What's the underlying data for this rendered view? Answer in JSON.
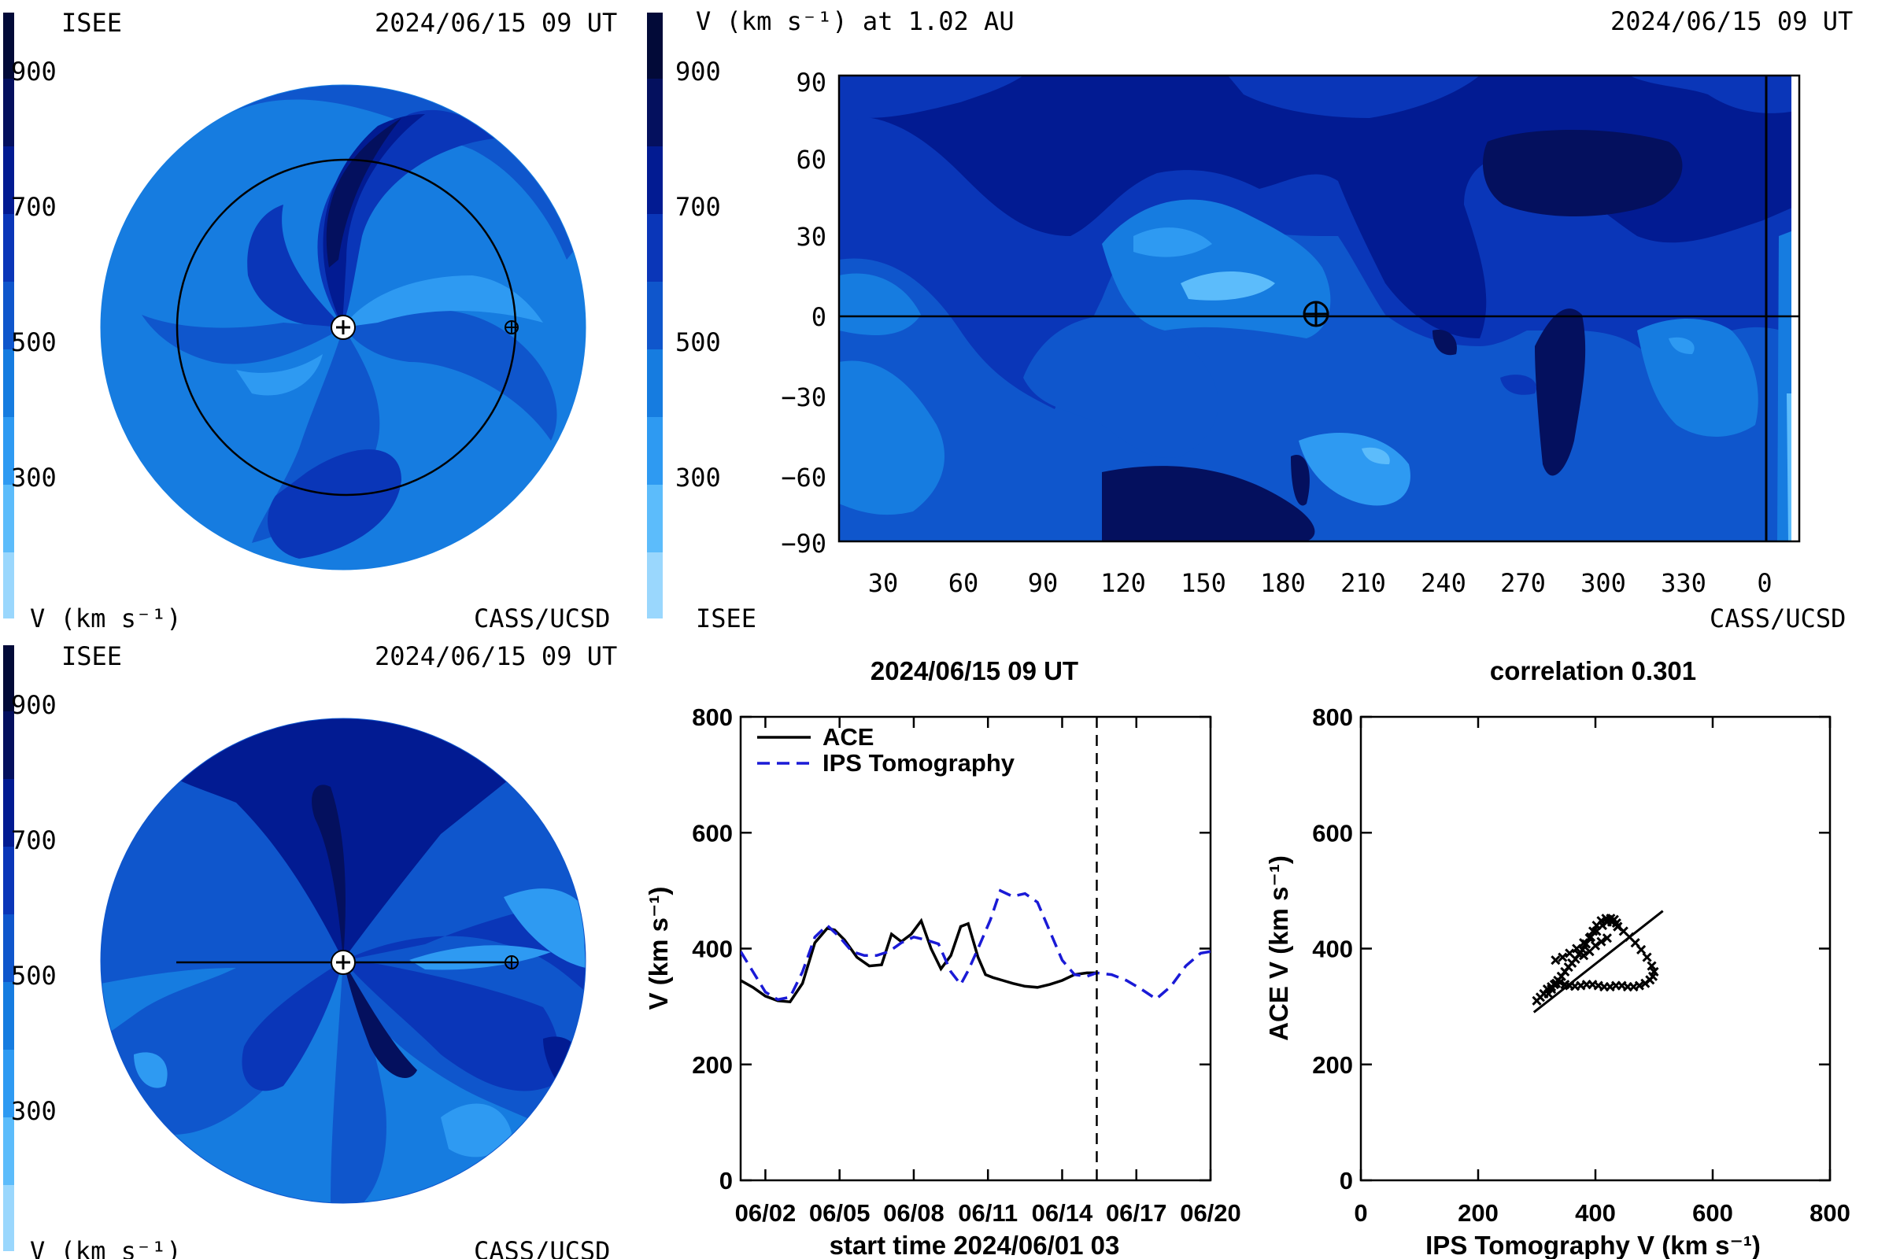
{
  "colors": {
    "v_900": "#020a38",
    "v_800": "#04105e",
    "v_700": "#021b92",
    "v_600": "#0a36b8",
    "v_500": "#0f56cc",
    "v_400": "#167ce0",
    "v_300": "#2e9af2",
    "v_200": "#5cbcfb",
    "v_100": "#9ad7fd",
    "ace_line": "#000000",
    "ips_line": "#1a1ad6"
  },
  "panel_top_left": {
    "org": "ISEE",
    "timestamp": "2024/06/15 09 UT",
    "colorbar_ticks": [
      "900",
      "700",
      "500",
      "300"
    ],
    "units": "V (km s⁻¹)",
    "credit": "CASS/UCSD"
  },
  "panel_bottom_left": {
    "org": "ISEE",
    "timestamp": "2024/06/15 09 UT",
    "colorbar_ticks": [
      "900",
      "700",
      "500",
      "300"
    ],
    "units": "V (km s⁻¹)",
    "credit": "CASS/UCSD"
  },
  "panel_top_right": {
    "title": "V (km s⁻¹) at 1.02 AU",
    "timestamp": "2024/06/15 09 UT",
    "colorbar_ticks": [
      "900",
      "700",
      "500",
      "300"
    ],
    "org": "ISEE",
    "credit": "CASS/UCSD",
    "y_ticks": [
      "90",
      "60",
      "30",
      "0",
      "−30",
      "−60",
      "−90"
    ],
    "x_ticks": [
      "30",
      "60",
      "90",
      "120",
      "150",
      "180",
      "210",
      "240",
      "270",
      "300",
      "330",
      "0"
    ]
  },
  "chart_data": [
    {
      "type": "line",
      "title": "2024/06/15 09 UT",
      "xlabel": "start time 2024/06/01 03",
      "ylabel": "V (km s⁻¹)",
      "xlim": [
        0,
        19
      ],
      "ylim": [
        0,
        800
      ],
      "x_ticks": [
        "06/02",
        "06/05",
        "06/08",
        "06/11",
        "06/14",
        "06/17",
        "06/20"
      ],
      "y_ticks": [
        "0",
        "200",
        "400",
        "600",
        "800"
      ],
      "marker_x": 14.4,
      "series": [
        {
          "name": "ACE",
          "style": "solid",
          "x": [
            0,
            0.5,
            1.0,
            1.5,
            2.0,
            2.5,
            3.0,
            3.5,
            3.8,
            4.2,
            4.7,
            5.2,
            5.7,
            6.1,
            6.5,
            6.9,
            7.3,
            7.7,
            8.1,
            8.5,
            8.9,
            9.2,
            9.6,
            9.9,
            10.2,
            10.6,
            11.0,
            11.5,
            12.0,
            12.5,
            13.0,
            13.5,
            14.0,
            14.4
          ],
          "y": [
            345,
            333,
            318,
            310,
            308,
            340,
            410,
            435,
            432,
            415,
            385,
            370,
            372,
            425,
            412,
            425,
            448,
            400,
            365,
            388,
            438,
            443,
            385,
            355,
            350,
            345,
            340,
            335,
            333,
            338,
            345,
            355,
            358,
            358
          ]
        },
        {
          "name": "IPS Tomography",
          "style": "dashed",
          "x": [
            0,
            0.5,
            1.0,
            1.5,
            2.0,
            2.5,
            3.0,
            3.5,
            4.0,
            4.5,
            5.0,
            5.5,
            6.0,
            6.5,
            7.0,
            7.5,
            8.0,
            8.5,
            8.9,
            9.2,
            9.6,
            10.1,
            10.5,
            11.0,
            11.5,
            12.0,
            12.5,
            13.0,
            13.5,
            14.0,
            14.4,
            15.0,
            15.6,
            16.2,
            16.8,
            17.4,
            18.0,
            18.6,
            19.0
          ],
          "y": [
            395,
            360,
            325,
            312,
            316,
            360,
            420,
            440,
            420,
            395,
            388,
            388,
            395,
            410,
            420,
            415,
            408,
            360,
            338,
            362,
            400,
            450,
            500,
            490,
            495,
            480,
            430,
            380,
            355,
            352,
            358,
            355,
            345,
            330,
            313,
            335,
            370,
            392,
            395
          ]
        }
      ]
    },
    {
      "type": "scatter",
      "title": "correlation 0.301",
      "xlabel": "IPS Tomography V (km s⁻¹)",
      "ylabel": "ACE V (km s⁻¹)",
      "xlim": [
        0,
        800
      ],
      "ylim": [
        0,
        800
      ],
      "x_ticks": [
        "0",
        "200",
        "400",
        "600",
        "800"
      ],
      "y_ticks": [
        "0",
        "200",
        "400",
        "600",
        "800"
      ],
      "fit_line": {
        "x": [
          295,
          515
        ],
        "y": [
          290,
          465
        ]
      },
      "x": [
        300,
        306,
        312,
        318,
        325,
        333,
        340,
        348,
        356,
        365,
        375,
        385,
        395,
        405,
        415,
        425,
        435,
        445,
        455,
        465,
        475,
        485,
        493,
        498,
        500,
        496,
        488,
        478,
        468,
        458,
        448,
        438,
        428,
        418,
        410,
        402,
        396,
        390,
        384,
        378,
        372,
        366,
        360,
        354,
        348,
        342,
        336,
        330,
        325,
        320,
        332,
        344,
        356,
        368,
        380,
        392,
        402,
        412,
        420,
        426,
        432,
        436,
        438,
        420,
        410,
        400,
        390,
        380
      ],
      "y": [
        310,
        316,
        322,
        330,
        334,
        340,
        342,
        338,
        336,
        335,
        336,
        338,
        338,
        336,
        334,
        334,
        336,
        336,
        334,
        334,
        336,
        340,
        346,
        352,
        360,
        370,
        385,
        398,
        410,
        420,
        430,
        438,
        446,
        452,
        448,
        440,
        430,
        418,
        408,
        398,
        390,
        382,
        375,
        368,
        360,
        352,
        345,
        338,
        330,
        322,
        380,
        385,
        392,
        400,
        410,
        420,
        430,
        440,
        446,
        452,
        450,
        444,
        438,
        418,
        412,
        405,
        395,
        388
      ]
    }
  ]
}
